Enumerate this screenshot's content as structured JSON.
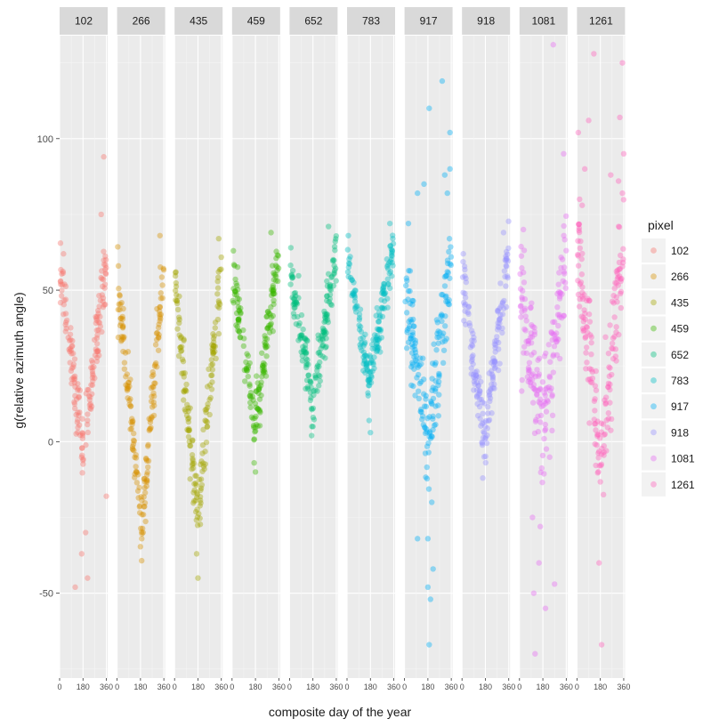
{
  "chart_data": {
    "type": "scatter",
    "facet_by": "pixel",
    "xlabel": "composite day of the year",
    "ylabel": "g(relative azimuth angle)",
    "xlim": [
      0,
      370
    ],
    "ylim": [
      -78,
      134
    ],
    "x_ticks": [
      0,
      180,
      360
    ],
    "x_tick_labels": [
      "0",
      "180",
      "360"
    ],
    "y_ticks": [
      -50,
      0,
      50,
      100
    ],
    "y_tick_labels": [
      "-50",
      "0",
      "50",
      "100"
    ],
    "grid": true,
    "point_alpha": 0.4,
    "legend": {
      "title": "pixel",
      "placement": "right"
    },
    "series": [
      {
        "name": "102",
        "color": "#F8766D",
        "v_bottom_day": 180,
        "v_bottom_value": -2,
        "start_value": 55,
        "end_value": 60,
        "spread": 8,
        "outliers": [
          [
            120,
            -48
          ],
          [
            215,
            -45
          ],
          [
            170,
            -37
          ],
          [
            200,
            -30
          ],
          [
            340,
            94
          ],
          [
            360,
            -18
          ],
          [
            320,
            75
          ],
          [
            30,
            62
          ]
        ]
      },
      {
        "name": "266",
        "color": "#D89000",
        "v_bottom_day": 190,
        "v_bottom_value": -28,
        "start_value": 52,
        "end_value": 58,
        "spread": 7,
        "outliers": [
          [
            190,
            -32
          ],
          [
            200,
            -30
          ],
          [
            330,
            68
          ],
          [
            10,
            58
          ]
        ]
      },
      {
        "name": "435",
        "color": "#A3A500",
        "v_bottom_day": 180,
        "v_bottom_value": -26,
        "start_value": 50,
        "end_value": 58,
        "spread": 8,
        "outliers": [
          [
            180,
            -45
          ],
          [
            170,
            -37
          ],
          [
            340,
            67
          ],
          [
            10,
            56
          ]
        ]
      },
      {
        "name": "459",
        "color": "#39B600",
        "v_bottom_day": 170,
        "v_bottom_value": 5,
        "start_value": 55,
        "end_value": 62,
        "spread": 7,
        "outliers": [
          [
            180,
            -10
          ],
          [
            170,
            -7
          ],
          [
            300,
            69
          ],
          [
            10,
            63
          ]
        ]
      },
      {
        "name": "652",
        "color": "#00BF7D",
        "v_bottom_day": 180,
        "v_bottom_value": 12,
        "start_value": 57,
        "end_value": 63,
        "spread": 7,
        "outliers": [
          [
            170,
            2
          ],
          [
            180,
            5
          ],
          [
            300,
            71
          ],
          [
            10,
            64
          ]
        ]
      },
      {
        "name": "783",
        "color": "#00BFC4",
        "v_bottom_day": 170,
        "v_bottom_value": 20,
        "start_value": 60,
        "end_value": 66,
        "spread": 6,
        "outliers": [
          [
            180,
            3
          ],
          [
            170,
            7
          ],
          [
            330,
            72
          ],
          [
            10,
            68
          ]
        ]
      },
      {
        "name": "917",
        "color": "#00B0F6",
        "v_bottom_day": 180,
        "v_bottom_value": -3,
        "start_value": 50,
        "end_value": 60,
        "spread": 13,
        "outliers": [
          [
            190,
            -67
          ],
          [
            200,
            -52
          ],
          [
            180,
            -48
          ],
          [
            220,
            -42
          ],
          [
            100,
            -32
          ],
          [
            180,
            -32
          ],
          [
            190,
            110
          ],
          [
            290,
            119
          ],
          [
            350,
            102
          ],
          [
            350,
            90
          ],
          [
            310,
            88
          ],
          [
            150,
            85
          ],
          [
            100,
            82
          ],
          [
            330,
            82
          ],
          [
            30,
            72
          ],
          [
            210,
            -20
          ]
        ]
      },
      {
        "name": "918",
        "color": "#9590FF",
        "v_bottom_day": 170,
        "v_bottom_value": 0,
        "start_value": 55,
        "end_value": 62,
        "spread": 8,
        "outliers": [
          [
            160,
            -12
          ],
          [
            170,
            -5
          ],
          [
            320,
            69
          ],
          [
            10,
            62
          ]
        ]
      },
      {
        "name": "1081",
        "color": "#E76BF3",
        "v_bottom_day": 180,
        "v_bottom_value": 5,
        "start_value": 50,
        "end_value": 62,
        "spread": 14,
        "outliers": [
          [
            260,
            131
          ],
          [
            340,
            95
          ],
          [
            120,
            -70
          ],
          [
            110,
            -50
          ],
          [
            150,
            -40
          ],
          [
            160,
            -28
          ],
          [
            270,
            -47
          ],
          [
            100,
            -25
          ],
          [
            30,
            70
          ],
          [
            200,
            -55
          ]
        ]
      },
      {
        "name": "1261",
        "color": "#FF62BC",
        "v_bottom_day": 180,
        "v_bottom_value": -5,
        "start_value": 65,
        "end_value": 62,
        "spread": 14,
        "outliers": [
          [
            130,
            128
          ],
          [
            350,
            125
          ],
          [
            90,
            106
          ],
          [
            330,
            107
          ],
          [
            10,
            102
          ],
          [
            60,
            90
          ],
          [
            320,
            86
          ],
          [
            360,
            95
          ],
          [
            350,
            82
          ],
          [
            170,
            -40
          ],
          [
            190,
            -67
          ],
          [
            20,
            80
          ],
          [
            40,
            78
          ],
          [
            260,
            88
          ]
        ]
      }
    ]
  }
}
